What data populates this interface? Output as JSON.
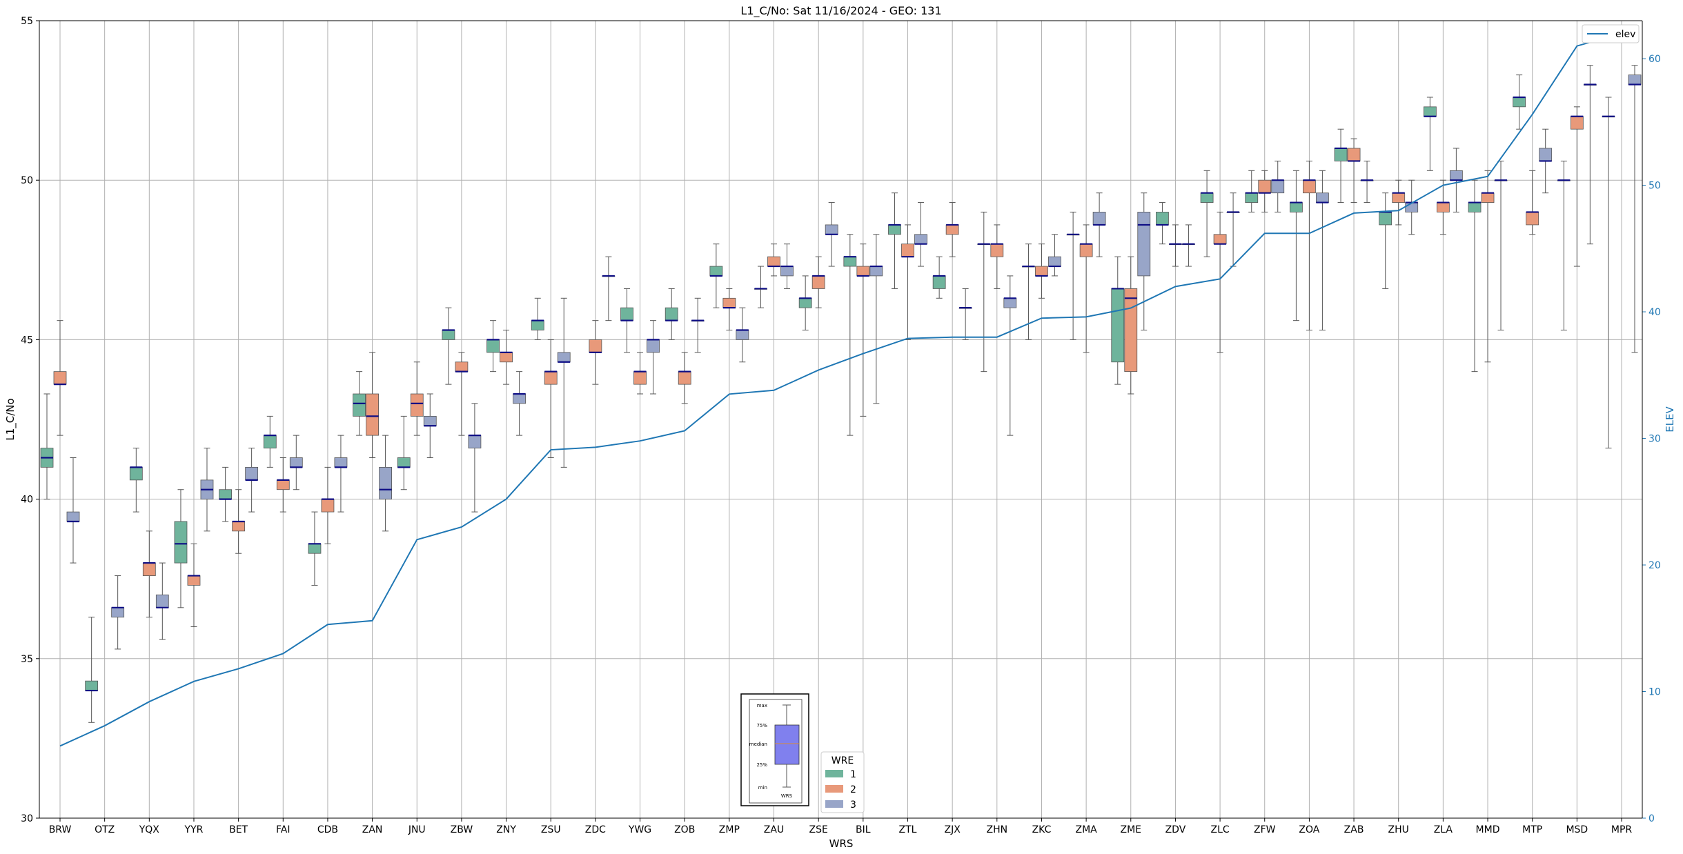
{
  "chart_data": {
    "type": "box",
    "title": "L1_C/No: Sat 11/16/2024 - GEO: 131",
    "xlabel": "WRS",
    "ylabel": "L1_C/No",
    "y2label": "ELEV",
    "ylim": [
      30,
      55
    ],
    "y2lim": [
      0,
      63
    ],
    "yticks": [
      30,
      35,
      40,
      45,
      50,
      55
    ],
    "y2ticks": [
      0,
      10,
      20,
      30,
      40,
      50,
      60
    ],
    "grid": true,
    "categories": [
      "BRW",
      "OTZ",
      "YQX",
      "YYR",
      "BET",
      "FAI",
      "CDB",
      "ZAN",
      "JNU",
      "ZBW",
      "ZNY",
      "ZSU",
      "ZDC",
      "YWG",
      "ZOB",
      "ZMP",
      "ZAU",
      "ZSE",
      "BIL",
      "ZTL",
      "ZJX",
      "ZHN",
      "ZKC",
      "ZMA",
      "ZME",
      "ZDV",
      "ZLC",
      "ZFW",
      "ZOA",
      "ZAB",
      "ZHU",
      "ZLA",
      "MMD",
      "MTP",
      "MSD",
      "MPR"
    ],
    "legend_wre": {
      "title": "WRE",
      "placement": "bottom-center",
      "entries": [
        {
          "label": "1",
          "color": "#6fb49c"
        },
        {
          "label": "2",
          "color": "#e8997a"
        },
        {
          "label": "3",
          "color": "#98a5c8"
        }
      ]
    },
    "legend_elev": {
      "label": "elev",
      "color": "#1f77b4",
      "placement": "top-right"
    },
    "key_labels": [
      "max",
      "75%",
      "median",
      "25%",
      "min",
      "WRS"
    ],
    "colors": {
      "wre1": "#6fb49c",
      "wre2": "#e8997a",
      "wre3": "#98a5c8",
      "median": "#0d0d85",
      "elev": "#1f77b4",
      "whisker": "#555555",
      "grid": "#b0b0b0"
    },
    "elev": [
      5.7,
      7.3,
      9.2,
      10.8,
      11.8,
      13,
      15.3,
      15.6,
      22,
      23,
      25.2,
      29.1,
      29.3,
      29.8,
      30.6,
      33.5,
      33.8,
      35.4,
      36.7,
      37.9,
      38,
      38.0,
      39.5,
      39.6,
      40.3,
      42,
      42.6,
      46.2,
      46.2,
      47.8,
      48,
      50,
      50.7,
      55.6,
      61,
      62
    ],
    "boxes": [
      {
        "cat": "BRW",
        "wre": 1,
        "min": 40,
        "q1": 41,
        "median": 41.3,
        "q3": 41.6,
        "max": 43.3
      },
      {
        "cat": "BRW",
        "wre": 2,
        "min": 42,
        "q1": 43.6,
        "median": 43.6,
        "q3": 44,
        "max": 45.6
      },
      {
        "cat": "BRW",
        "wre": 3,
        "min": 38,
        "q1": 39.3,
        "median": 39.3,
        "q3": 39.6,
        "max": 41.3
      },
      {
        "cat": "OTZ",
        "wre": 1,
        "min": 33,
        "q1": 34,
        "median": 34,
        "q3": 34.3,
        "max": 36.3
      },
      {
        "cat": "OTZ",
        "wre": 3,
        "min": 35.3,
        "q1": 36.3,
        "median": 36.6,
        "q3": 36.6,
        "max": 37.6
      },
      {
        "cat": "YQX",
        "wre": 1,
        "min": 39.6,
        "q1": 40.6,
        "median": 41,
        "q3": 41,
        "max": 41.6
      },
      {
        "cat": "YQX",
        "wre": 2,
        "min": 36.3,
        "q1": 37.6,
        "median": 38,
        "q3": 38,
        "max": 39
      },
      {
        "cat": "YQX",
        "wre": 3,
        "min": 35.6,
        "q1": 36.6,
        "median": 36.6,
        "q3": 37,
        "max": 38
      },
      {
        "cat": "YYR",
        "wre": 1,
        "min": 36.6,
        "q1": 38,
        "median": 38.6,
        "q3": 39.3,
        "max": 40.3
      },
      {
        "cat": "YYR",
        "wre": 2,
        "min": 36,
        "q1": 37.3,
        "median": 37.6,
        "q3": 37.6,
        "max": 38.6
      },
      {
        "cat": "YYR",
        "wre": 3,
        "min": 39,
        "q1": 40,
        "median": 40.3,
        "q3": 40.6,
        "max": 41.6
      },
      {
        "cat": "BET",
        "wre": 1,
        "min": 39.3,
        "q1": 40,
        "median": 40,
        "q3": 40.3,
        "max": 41
      },
      {
        "cat": "BET",
        "wre": 2,
        "min": 38.3,
        "q1": 39,
        "median": 39.3,
        "q3": 39.3,
        "max": 40.3
      },
      {
        "cat": "BET",
        "wre": 3,
        "min": 39.6,
        "q1": 40.6,
        "median": 40.6,
        "q3": 41,
        "max": 41.6
      },
      {
        "cat": "FAI",
        "wre": 1,
        "min": 41,
        "q1": 41.6,
        "median": 42,
        "q3": 42,
        "max": 42.6
      },
      {
        "cat": "FAI",
        "wre": 2,
        "min": 39.6,
        "q1": 40.3,
        "median": 40.6,
        "q3": 40.6,
        "max": 41.3
      },
      {
        "cat": "FAI",
        "wre": 3,
        "min": 40.3,
        "q1": 41,
        "median": 41,
        "q3": 41.3,
        "max": 42
      },
      {
        "cat": "CDB",
        "wre": 1,
        "min": 37.3,
        "q1": 38.3,
        "median": 38.6,
        "q3": 38.6,
        "max": 39.6
      },
      {
        "cat": "CDB",
        "wre": 2,
        "min": 38.6,
        "q1": 39.6,
        "median": 40,
        "q3": 40,
        "max": 41
      },
      {
        "cat": "CDB",
        "wre": 3,
        "min": 39.6,
        "q1": 41,
        "median": 41,
        "q3": 41.3,
        "max": 42
      },
      {
        "cat": "ZAN",
        "wre": 1,
        "min": 42,
        "q1": 42.6,
        "median": 43,
        "q3": 43.3,
        "max": 44
      },
      {
        "cat": "ZAN",
        "wre": 2,
        "min": 41.3,
        "q1": 42,
        "median": 42.6,
        "q3": 43.3,
        "max": 44.6
      },
      {
        "cat": "ZAN",
        "wre": 3,
        "min": 39,
        "q1": 40,
        "median": 40.3,
        "q3": 41,
        "max": 42
      },
      {
        "cat": "JNU",
        "wre": 1,
        "min": 40.3,
        "q1": 41,
        "median": 41,
        "q3": 41.3,
        "max": 42.6
      },
      {
        "cat": "JNU",
        "wre": 2,
        "min": 42,
        "q1": 42.6,
        "median": 43,
        "q3": 43.3,
        "max": 44.3
      },
      {
        "cat": "JNU",
        "wre": 3,
        "min": 41.3,
        "q1": 42.3,
        "median": 42.3,
        "q3": 42.6,
        "max": 43.3
      },
      {
        "cat": "ZBW",
        "wre": 1,
        "min": 43.6,
        "q1": 45,
        "median": 45.3,
        "q3": 45.3,
        "max": 46
      },
      {
        "cat": "ZBW",
        "wre": 2,
        "min": 42,
        "q1": 44,
        "median": 44,
        "q3": 44.3,
        "max": 44.6
      },
      {
        "cat": "ZBW",
        "wre": 3,
        "min": 39.6,
        "q1": 41.6,
        "median": 42,
        "q3": 42,
        "max": 43
      },
      {
        "cat": "ZNY",
        "wre": 1,
        "min": 44,
        "q1": 44.6,
        "median": 45,
        "q3": 45,
        "max": 45.6
      },
      {
        "cat": "ZNY",
        "wre": 2,
        "min": 43.6,
        "q1": 44.3,
        "median": 44.6,
        "q3": 44.6,
        "max": 45.3
      },
      {
        "cat": "ZNY",
        "wre": 3,
        "min": 42,
        "q1": 43,
        "median": 43.3,
        "q3": 43.3,
        "max": 44
      },
      {
        "cat": "ZSU",
        "wre": 1,
        "min": 45,
        "q1": 45.3,
        "median": 45.6,
        "q3": 45.6,
        "max": 46.3
      },
      {
        "cat": "ZSU",
        "wre": 2,
        "min": 41.3,
        "q1": 43.6,
        "median": 44,
        "q3": 44,
        "max": 45
      },
      {
        "cat": "ZSU",
        "wre": 3,
        "min": 41,
        "q1": 44.3,
        "median": 44.3,
        "q3": 44.6,
        "max": 46.3
      },
      {
        "cat": "ZDC",
        "wre": 2,
        "min": 43.6,
        "q1": 44.6,
        "median": 44.6,
        "q3": 45,
        "max": 45.6
      },
      {
        "cat": "ZDC",
        "wre": 3,
        "min": 45.6,
        "q1": 47,
        "median": 47,
        "q3": 47,
        "max": 47.6
      },
      {
        "cat": "YWG",
        "wre": 1,
        "min": 44.6,
        "q1": 45.6,
        "median": 45.6,
        "q3": 46,
        "max": 46.6
      },
      {
        "cat": "YWG",
        "wre": 2,
        "min": 43.3,
        "q1": 43.6,
        "median": 44,
        "q3": 44,
        "max": 44.6
      },
      {
        "cat": "YWG",
        "wre": 3,
        "min": 43.3,
        "q1": 44.6,
        "median": 45,
        "q3": 45,
        "max": 45.6
      },
      {
        "cat": "ZOB",
        "wre": 1,
        "min": 45,
        "q1": 45.6,
        "median": 45.6,
        "q3": 46,
        "max": 46.6
      },
      {
        "cat": "ZOB",
        "wre": 2,
        "min": 43,
        "q1": 43.6,
        "median": 44,
        "q3": 44,
        "max": 44.6
      },
      {
        "cat": "ZOB",
        "wre": 3,
        "min": 44.6,
        "q1": 45.6,
        "median": 45.6,
        "q3": 45.6,
        "max": 46.3
      },
      {
        "cat": "ZMP",
        "wre": 1,
        "min": 46,
        "q1": 47,
        "median": 47,
        "q3": 47.3,
        "max": 48
      },
      {
        "cat": "ZMP",
        "wre": 2,
        "min": 45.3,
        "q1": 46,
        "median": 46,
        "q3": 46.3,
        "max": 46.6
      },
      {
        "cat": "ZMP",
        "wre": 3,
        "min": 44.3,
        "q1": 45,
        "median": 45.3,
        "q3": 45.3,
        "max": 46
      },
      {
        "cat": "ZAU",
        "wre": 1,
        "min": 46,
        "q1": 46.6,
        "median": 46.6,
        "q3": 46.6,
        "max": 47.3
      },
      {
        "cat": "ZAU",
        "wre": 2,
        "min": 47,
        "q1": 47.3,
        "median": 47.3,
        "q3": 47.6,
        "max": 48
      },
      {
        "cat": "ZAU",
        "wre": 3,
        "min": 46.6,
        "q1": 47,
        "median": 47.3,
        "q3": 47.3,
        "max": 48
      },
      {
        "cat": "ZSE",
        "wre": 1,
        "min": 45.3,
        "q1": 46,
        "median": 46.3,
        "q3": 46.3,
        "max": 47
      },
      {
        "cat": "ZSE",
        "wre": 2,
        "min": 46,
        "q1": 46.6,
        "median": 47,
        "q3": 47,
        "max": 47.6
      },
      {
        "cat": "ZSE",
        "wre": 3,
        "min": 47.3,
        "q1": 48.3,
        "median": 48.3,
        "q3": 48.6,
        "max": 49.3
      },
      {
        "cat": "BIL",
        "wre": 1,
        "min": 42,
        "q1": 47.3,
        "median": 47.6,
        "q3": 47.6,
        "max": 48.3
      },
      {
        "cat": "BIL",
        "wre": 2,
        "min": 42.6,
        "q1": 47,
        "median": 47,
        "q3": 47.3,
        "max": 48
      },
      {
        "cat": "BIL",
        "wre": 3,
        "min": 43,
        "q1": 47,
        "median": 47.3,
        "q3": 47.3,
        "max": 48.3
      },
      {
        "cat": "ZTL",
        "wre": 1,
        "min": 46.6,
        "q1": 48.3,
        "median": 48.6,
        "q3": 48.6,
        "max": 49.6
      },
      {
        "cat": "ZTL",
        "wre": 2,
        "min": 45,
        "q1": 47.6,
        "median": 47.6,
        "q3": 48,
        "max": 48.6
      },
      {
        "cat": "ZTL",
        "wre": 3,
        "min": 47.3,
        "q1": 48,
        "median": 48,
        "q3": 48.3,
        "max": 49.3
      },
      {
        "cat": "ZJX",
        "wre": 1,
        "min": 46.3,
        "q1": 46.6,
        "median": 47,
        "q3": 47,
        "max": 47.6
      },
      {
        "cat": "ZJX",
        "wre": 2,
        "min": 47.6,
        "q1": 48.3,
        "median": 48.6,
        "q3": 48.6,
        "max": 49.3
      },
      {
        "cat": "ZJX",
        "wre": 3,
        "min": 45,
        "q1": 46,
        "median": 46,
        "q3": 46,
        "max": 46.6
      },
      {
        "cat": "ZHN",
        "wre": 1,
        "min": 44,
        "q1": 48,
        "median": 48,
        "q3": 48,
        "max": 49
      },
      {
        "cat": "ZHN",
        "wre": 2,
        "min": 46.6,
        "q1": 47.6,
        "median": 48,
        "q3": 48,
        "max": 48.6
      },
      {
        "cat": "ZHN",
        "wre": 3,
        "min": 42,
        "q1": 46,
        "median": 46.3,
        "q3": 46.3,
        "max": 47
      },
      {
        "cat": "ZKC",
        "wre": 1,
        "min": 45,
        "q1": 47.3,
        "median": 47.3,
        "q3": 47.3,
        "max": 48
      },
      {
        "cat": "ZKC",
        "wre": 2,
        "min": 46.3,
        "q1": 47,
        "median": 47,
        "q3": 47.3,
        "max": 48
      },
      {
        "cat": "ZKC",
        "wre": 3,
        "min": 47,
        "q1": 47.3,
        "median": 47.3,
        "q3": 47.6,
        "max": 48.3
      },
      {
        "cat": "ZMA",
        "wre": 1,
        "min": 45,
        "q1": 48.3,
        "median": 48.3,
        "q3": 48.3,
        "max": 49
      },
      {
        "cat": "ZMA",
        "wre": 2,
        "min": 44.6,
        "q1": 47.6,
        "median": 48,
        "q3": 48,
        "max": 48.6
      },
      {
        "cat": "ZMA",
        "wre": 3,
        "min": 47.6,
        "q1": 48.6,
        "median": 48.6,
        "q3": 49,
        "max": 49.6
      },
      {
        "cat": "ZME",
        "wre": 1,
        "min": 43.6,
        "q1": 44.3,
        "median": 46.6,
        "q3": 46.6,
        "max": 47.6
      },
      {
        "cat": "ZME",
        "wre": 2,
        "min": 43.3,
        "q1": 44,
        "median": 46.3,
        "q3": 46.6,
        "max": 47.6
      },
      {
        "cat": "ZME",
        "wre": 3,
        "min": 45.3,
        "q1": 47,
        "median": 48.6,
        "q3": 49,
        "max": 49.6
      },
      {
        "cat": "ZDV",
        "wre": 1,
        "min": 48,
        "q1": 48.6,
        "median": 48.6,
        "q3": 49,
        "max": 49.3
      },
      {
        "cat": "ZDV",
        "wre": 2,
        "min": 47.3,
        "q1": 48,
        "median": 48,
        "q3": 48,
        "max": 48.6
      },
      {
        "cat": "ZDV",
        "wre": 3,
        "min": 47.3,
        "q1": 48,
        "median": 48,
        "q3": 48,
        "max": 48.6
      },
      {
        "cat": "ZLC",
        "wre": 1,
        "min": 47.6,
        "q1": 49.3,
        "median": 49.6,
        "q3": 49.6,
        "max": 50.3
      },
      {
        "cat": "ZLC",
        "wre": 2,
        "min": 44.6,
        "q1": 48,
        "median": 48,
        "q3": 48.3,
        "max": 49
      },
      {
        "cat": "ZLC",
        "wre": 3,
        "min": 47.3,
        "q1": 49,
        "median": 49,
        "q3": 49,
        "max": 49.6
      },
      {
        "cat": "ZFW",
        "wre": 1,
        "min": 49,
        "q1": 49.3,
        "median": 49.6,
        "q3": 49.6,
        "max": 50.3
      },
      {
        "cat": "ZFW",
        "wre": 2,
        "min": 49,
        "q1": 49.6,
        "median": 49.6,
        "q3": 50,
        "max": 50.3
      },
      {
        "cat": "ZFW",
        "wre": 3,
        "min": 49,
        "q1": 49.6,
        "median": 50,
        "q3": 50,
        "max": 50.6
      },
      {
        "cat": "ZOA",
        "wre": 1,
        "min": 45.6,
        "q1": 49,
        "median": 49.3,
        "q3": 49.3,
        "max": 50.3
      },
      {
        "cat": "ZOA",
        "wre": 2,
        "min": 45.3,
        "q1": 49.6,
        "median": 50,
        "q3": 50,
        "max": 50.6
      },
      {
        "cat": "ZOA",
        "wre": 3,
        "min": 45.3,
        "q1": 49.3,
        "median": 49.3,
        "q3": 49.6,
        "max": 50.3
      },
      {
        "cat": "ZAB",
        "wre": 1,
        "min": 49.3,
        "q1": 50.6,
        "median": 51,
        "q3": 51,
        "max": 51.6
      },
      {
        "cat": "ZAB",
        "wre": 2,
        "min": 49.3,
        "q1": 50.6,
        "median": 50.6,
        "q3": 51,
        "max": 51.3
      },
      {
        "cat": "ZAB",
        "wre": 3,
        "min": 49.3,
        "q1": 50,
        "median": 50,
        "q3": 50,
        "max": 50.6
      },
      {
        "cat": "ZHU",
        "wre": 1,
        "min": 46.6,
        "q1": 48.6,
        "median": 49,
        "q3": 49,
        "max": 49.6
      },
      {
        "cat": "ZHU",
        "wre": 2,
        "min": 48.6,
        "q1": 49.3,
        "median": 49.6,
        "q3": 49.6,
        "max": 50
      },
      {
        "cat": "ZHU",
        "wre": 3,
        "min": 48.3,
        "q1": 49,
        "median": 49.3,
        "q3": 49.3,
        "max": 50
      },
      {
        "cat": "ZLA",
        "wre": 1,
        "min": 50.3,
        "q1": 52,
        "median": 52,
        "q3": 52.3,
        "max": 52.6
      },
      {
        "cat": "ZLA",
        "wre": 2,
        "min": 48.3,
        "q1": 49,
        "median": 49.3,
        "q3": 49.3,
        "max": 50
      },
      {
        "cat": "ZLA",
        "wre": 3,
        "min": 49,
        "q1": 50,
        "median": 50,
        "q3": 50.3,
        "max": 51
      },
      {
        "cat": "MMD",
        "wre": 1,
        "min": 44,
        "q1": 49,
        "median": 49.3,
        "q3": 49.3,
        "max": 50
      },
      {
        "cat": "MMD",
        "wre": 2,
        "min": 44.3,
        "q1": 49.3,
        "median": 49.6,
        "q3": 49.6,
        "max": 50.3
      },
      {
        "cat": "MMD",
        "wre": 3,
        "min": 45.3,
        "q1": 50,
        "median": 50,
        "q3": 50,
        "max": 50.6
      },
      {
        "cat": "MTP",
        "wre": 1,
        "min": 51.6,
        "q1": 52.3,
        "median": 52.6,
        "q3": 52.6,
        "max": 53.3
      },
      {
        "cat": "MTP",
        "wre": 2,
        "min": 48.3,
        "q1": 48.6,
        "median": 49,
        "q3": 49,
        "max": 50.3
      },
      {
        "cat": "MTP",
        "wre": 3,
        "min": 49.6,
        "q1": 50.6,
        "median": 50.6,
        "q3": 51,
        "max": 51.6
      },
      {
        "cat": "MSD",
        "wre": 1,
        "min": 45.3,
        "q1": 50,
        "median": 50,
        "q3": 50,
        "max": 50.6
      },
      {
        "cat": "MSD",
        "wre": 2,
        "min": 47.3,
        "q1": 51.6,
        "median": 52,
        "q3": 52,
        "max": 52.3
      },
      {
        "cat": "MSD",
        "wre": 3,
        "min": 48,
        "q1": 53,
        "median": 53,
        "q3": 53,
        "max": 53.6
      },
      {
        "cat": "MPR",
        "wre": 1,
        "min": 41.6,
        "q1": 52,
        "median": 52,
        "q3": 52,
        "max": 52.6
      },
      {
        "cat": "MPR",
        "wre": 3,
        "min": 44.6,
        "q1": 53,
        "median": 53,
        "q3": 53.3,
        "max": 53.6
      }
    ]
  }
}
